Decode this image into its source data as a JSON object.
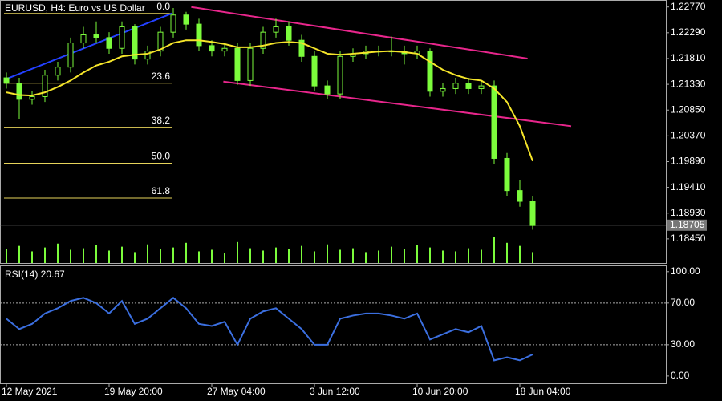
{
  "chart_data": {
    "type": "candlestick",
    "title": "EURUSD, H4:  Euro vs US Dollar",
    "categories": [
      "12 May 2021",
      null,
      null,
      null,
      null,
      null,
      null,
      null,
      "19 May 20:00",
      null,
      null,
      null,
      null,
      null,
      null,
      null,
      "27 May 04:00",
      null,
      null,
      null,
      null,
      null,
      null,
      null,
      "3 Jun 12:00",
      null,
      null,
      null,
      null,
      null,
      null,
      null,
      "10 Jun 20:00",
      null,
      null,
      null,
      null,
      null,
      null,
      null,
      "18 Jun 04:00",
      null
    ],
    "candle_color": "#7cfc3c",
    "ohlc": [
      [
        1.2145,
        1.2155,
        1.2125,
        1.2135
      ],
      [
        1.2135,
        1.2145,
        1.2068,
        1.2105
      ],
      [
        1.2105,
        1.212,
        1.2095,
        1.211
      ],
      [
        1.211,
        1.216,
        1.21,
        1.215
      ],
      [
        1.215,
        1.2175,
        1.214,
        1.2165
      ],
      [
        1.2165,
        1.222,
        1.2155,
        1.221
      ],
      [
        1.221,
        1.224,
        1.22,
        1.2225
      ],
      [
        1.2225,
        1.225,
        1.221,
        1.222
      ],
      [
        1.222,
        1.223,
        1.219,
        1.22
      ],
      [
        1.22,
        1.225,
        1.219,
        1.224
      ],
      [
        1.224,
        1.2245,
        1.217,
        1.218
      ],
      [
        1.218,
        1.2205,
        1.217,
        1.2195
      ],
      [
        1.2195,
        1.224,
        1.2185,
        1.223
      ],
      [
        1.223,
        1.2275,
        1.222,
        1.2262
      ],
      [
        1.2262,
        1.2268,
        1.2235,
        1.2245
      ],
      [
        1.2245,
        1.2255,
        1.2195,
        1.2205
      ],
      [
        1.2205,
        1.2215,
        1.2185,
        1.2195
      ],
      [
        1.2195,
        1.221,
        1.2185,
        1.22
      ],
      [
        1.22,
        1.221,
        1.2132,
        1.214
      ],
      [
        1.214,
        1.221,
        1.213,
        1.22
      ],
      [
        1.22,
        1.224,
        1.219,
        1.223
      ],
      [
        1.223,
        1.2255,
        1.222,
        1.224
      ],
      [
        1.224,
        1.225,
        1.2205,
        1.2215
      ],
      [
        1.2215,
        1.2225,
        1.2175,
        1.2185
      ],
      [
        1.2185,
        1.2195,
        1.212,
        1.213
      ],
      [
        1.213,
        1.214,
        1.2105,
        1.2115
      ],
      [
        1.2115,
        1.2195,
        1.2105,
        1.2185
      ],
      [
        1.2185,
        1.22,
        1.2175,
        1.219
      ],
      [
        1.219,
        1.2205,
        1.218,
        1.2195
      ],
      [
        1.2195,
        1.2205,
        1.2185,
        1.2195
      ],
      [
        1.2195,
        1.2222,
        1.2185,
        1.2195
      ],
      [
        1.2195,
        1.2205,
        1.217,
        1.219
      ],
      [
        1.219,
        1.2205,
        1.218,
        1.2195
      ],
      [
        1.2195,
        1.22,
        1.211,
        1.212
      ],
      [
        1.212,
        1.2135,
        1.211,
        1.2125
      ],
      [
        1.2125,
        1.2145,
        1.2115,
        1.2135
      ],
      [
        1.2135,
        1.2145,
        1.2115,
        1.2125
      ],
      [
        1.2125,
        1.214,
        1.2115,
        1.213
      ],
      [
        1.213,
        1.214,
        1.1985,
        1.1995
      ],
      [
        1.1995,
        1.2005,
        1.1925,
        1.1935
      ],
      [
        1.1935,
        1.1955,
        1.1905,
        1.1915
      ],
      [
        1.1915,
        1.1925,
        1.1862,
        1.187
      ]
    ],
    "moving_average": {
      "color": "#f5e52a",
      "values": [
        1.2118,
        1.2113,
        1.2112,
        1.2118,
        1.2128,
        1.214,
        1.2155,
        1.2168,
        1.2175,
        1.2185,
        1.2188,
        1.219,
        1.2198,
        1.221,
        1.2215,
        1.2215,
        1.2212,
        1.2208,
        1.2202,
        1.2202,
        1.2205,
        1.221,
        1.2212,
        1.221,
        1.22,
        1.219,
        1.2188,
        1.219,
        1.2192,
        1.2194,
        1.2195,
        1.2193,
        1.219,
        1.2175,
        1.216,
        1.215,
        1.2143,
        1.214,
        1.2125,
        1.21,
        1.2055,
        1.199
      ]
    },
    "volume": {
      "color": "#7cfc3c",
      "values": [
        18,
        22,
        15,
        20,
        25,
        17,
        19,
        23,
        16,
        21,
        14,
        24,
        18,
        20,
        26,
        15,
        17,
        13,
        27,
        19,
        16,
        20,
        18,
        22,
        15,
        24,
        17,
        19,
        14,
        16,
        21,
        18,
        23,
        20,
        16,
        15,
        19,
        17,
        33,
        26,
        22,
        14
      ]
    },
    "trendlines": [
      {
        "color": "#2340ff",
        "x": [
          -0.2,
          12.9
        ],
        "y": [
          1.2141,
          1.2265
        ]
      },
      {
        "color": "#e8268c",
        "x": [
          14.4,
          40.6
        ],
        "y": [
          1.2277,
          1.2181
        ]
      },
      {
        "color": "#e8268c",
        "x": [
          16.9,
          44.0
        ],
        "y": [
          1.2138,
          1.2055
        ]
      }
    ],
    "fib_color": "#e6d35a",
    "fib_levels": [
      {
        "value": 0,
        "label": "0.0"
      },
      23.6,
      38.2,
      {
        "value": 50,
        "label": "50.0"
      },
      61.8
    ],
    "fib_prices": [
      1.2265,
      1.2135,
      1.2053,
      1.1986,
      1.1921
    ],
    "last_price": 1.18705,
    "ylim": [
      1.18,
      1.229
    ],
    "yticks": [
      {
        "value": 1.2277,
        "label": "1.22770"
      },
      {
        "value": 1.2229,
        "label": "1.22290"
      },
      {
        "value": 1.2181,
        "label": "1.21810"
      },
      {
        "value": 1.2133,
        "label": "1.21330"
      },
      {
        "value": 1.2085,
        "label": "1.20850"
      },
      {
        "value": 1.2037,
        "label": "1.20370"
      },
      {
        "value": 1.1989,
        "label": "1.19890"
      },
      {
        "value": 1.1941,
        "label": "1.19410"
      },
      {
        "value": 1.1893,
        "label": "1.18930"
      },
      {
        "value": 1.1845,
        "label": "1.18450"
      }
    ],
    "rsi": {
      "label": "RSI(14) 20.67",
      "color": "#3b6fe0",
      "values": [
        55,
        45,
        50,
        60,
        65,
        72,
        75,
        70,
        60,
        72,
        50,
        55,
        65,
        75,
        65,
        50,
        48,
        52,
        30,
        55,
        62,
        65,
        55,
        45,
        30,
        30,
        55,
        58,
        60,
        60,
        58,
        55,
        60,
        35,
        40,
        45,
        42,
        48,
        15,
        18,
        15,
        20.67
      ],
      "ylim": [
        -7,
        106
      ],
      "yticks": [
        {
          "value": 100,
          "label": "100.00"
        },
        {
          "value": 70,
          "label": "70.00"
        },
        {
          "value": 30,
          "label": "30.00"
        },
        {
          "value": 0,
          "label": "0.00"
        }
      ],
      "levels": [
        70,
        30
      ]
    }
  }
}
